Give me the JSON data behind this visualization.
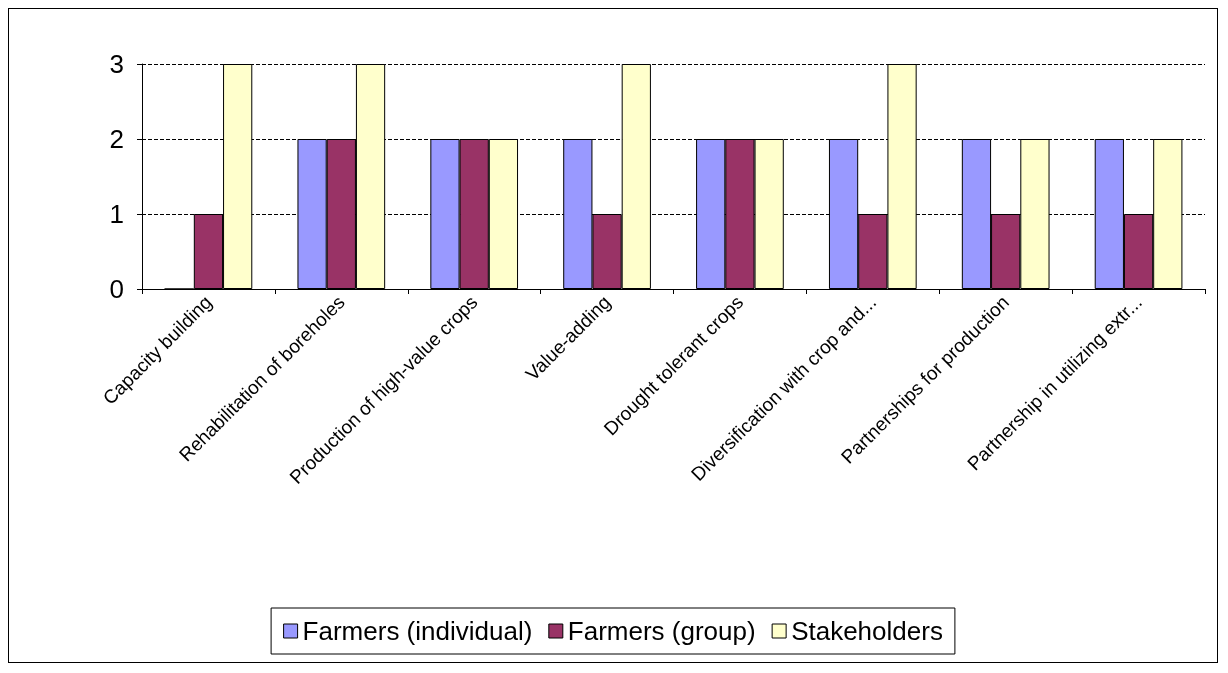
{
  "chart_data": {
    "type": "bar",
    "categories": [
      "Capacity building",
      "Rehabilitation of boreholes",
      "Production of high-value crops",
      "Value-adding",
      "Drought tolerant crops",
      "Diversification with crop and...",
      "Partnerships for production",
      "Partnership in utilizing extr..."
    ],
    "series": [
      {
        "name": "Farmers (individual)",
        "color": "#9999ff",
        "values": [
          0,
          2,
          2,
          2,
          2,
          2,
          2,
          2
        ]
      },
      {
        "name": "Farmers (group)",
        "color": "#993366",
        "values": [
          1,
          2,
          2,
          1,
          2,
          1,
          1,
          1
        ]
      },
      {
        "name": "Stakeholders",
        "color": "#ffffcc",
        "values": [
          3,
          3,
          2,
          3,
          2,
          3,
          2,
          2
        ]
      }
    ],
    "ylim": [
      0,
      3
    ],
    "yticks": [
      0,
      1,
      2,
      3
    ],
    "grid": "y",
    "legend": "bottom"
  }
}
